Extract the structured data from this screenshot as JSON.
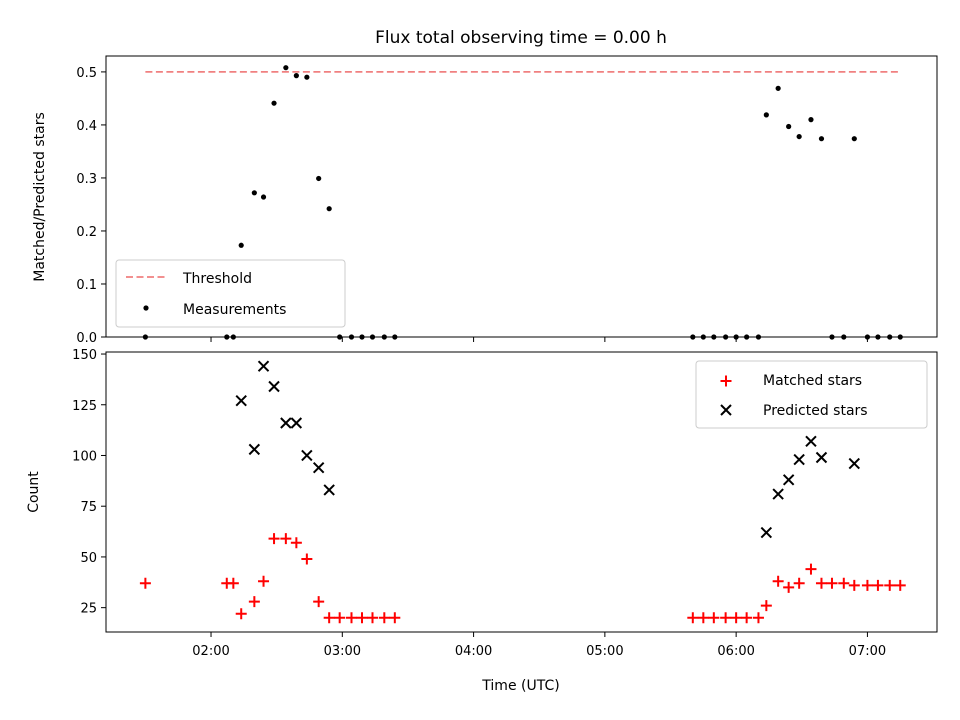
{
  "chart_data": [
    {
      "type": "scatter",
      "title": "Flux total observing time = 0.00 h",
      "xlabel": "",
      "ylabel": "Matched/Predicted stars",
      "xlim": [
        1.2,
        7.53
      ],
      "ylim": [
        0.0,
        0.53
      ],
      "yticks": [
        0.0,
        0.1,
        0.2,
        0.3,
        0.4,
        0.5
      ],
      "ytick_labels": [
        "0.0",
        "0.1",
        "0.2",
        "0.3",
        "0.4",
        "0.5"
      ],
      "legend_position": "lower-left",
      "threshold": {
        "name": "Threshold",
        "y": 0.5,
        "x_range": [
          1.5,
          7.25
        ],
        "color": "#f08080"
      },
      "series": [
        {
          "name": "Measurements",
          "color": "#000000",
          "marker": "dot",
          "points": [
            [
              1.5,
              0.0
            ],
            [
              2.12,
              0.0
            ],
            [
              2.17,
              0.0
            ],
            [
              2.23,
              0.173
            ],
            [
              2.33,
              0.272
            ],
            [
              2.4,
              0.264
            ],
            [
              2.48,
              0.441
            ],
            [
              2.57,
              0.508
            ],
            [
              2.65,
              0.493
            ],
            [
              2.73,
              0.49
            ],
            [
              2.82,
              0.299
            ],
            [
              2.9,
              0.242
            ],
            [
              2.98,
              0.0
            ],
            [
              3.07,
              0.0
            ],
            [
              3.15,
              0.0
            ],
            [
              3.23,
              0.0
            ],
            [
              3.32,
              0.0
            ],
            [
              3.4,
              0.0
            ],
            [
              5.67,
              0.0
            ],
            [
              5.75,
              0.0
            ],
            [
              5.83,
              0.0
            ],
            [
              5.92,
              0.0
            ],
            [
              6.0,
              0.0
            ],
            [
              6.08,
              0.0
            ],
            [
              6.17,
              0.0
            ],
            [
              6.23,
              0.419
            ],
            [
              6.32,
              0.469
            ],
            [
              6.4,
              0.397
            ],
            [
              6.48,
              0.378
            ],
            [
              6.57,
              0.41
            ],
            [
              6.65,
              0.374
            ],
            [
              6.73,
              0.0
            ],
            [
              6.82,
              0.0
            ],
            [
              6.9,
              0.374
            ],
            [
              7.0,
              0.0
            ],
            [
              7.08,
              0.0
            ],
            [
              7.17,
              0.0
            ],
            [
              7.25,
              0.0
            ]
          ]
        }
      ]
    },
    {
      "type": "scatter",
      "title": "",
      "xlabel": "Time (UTC)",
      "ylabel": "Count",
      "xlim": [
        1.2,
        7.53
      ],
      "ylim": [
        13,
        151
      ],
      "yticks": [
        25,
        50,
        75,
        100,
        125,
        150
      ],
      "ytick_labels": [
        "25",
        "50",
        "75",
        "100",
        "125",
        "150"
      ],
      "xticks": [
        2,
        3,
        4,
        5,
        6,
        7
      ],
      "xtick_labels": [
        "02:00",
        "03:00",
        "04:00",
        "05:00",
        "06:00",
        "07:00"
      ],
      "legend_position": "upper-right",
      "series": [
        {
          "name": "Matched stars",
          "color": "#ff0000",
          "marker": "plus",
          "points": [
            [
              1.5,
              37
            ],
            [
              2.12,
              37
            ],
            [
              2.17,
              37
            ],
            [
              2.23,
              22
            ],
            [
              2.33,
              28
            ],
            [
              2.4,
              38
            ],
            [
              2.48,
              59
            ],
            [
              2.57,
              59
            ],
            [
              2.65,
              57
            ],
            [
              2.73,
              49
            ],
            [
              2.82,
              28
            ],
            [
              2.9,
              20
            ],
            [
              2.98,
              20
            ],
            [
              3.07,
              20
            ],
            [
              3.15,
              20
            ],
            [
              3.23,
              20
            ],
            [
              3.32,
              20
            ],
            [
              3.4,
              20
            ],
            [
              5.67,
              20
            ],
            [
              5.75,
              20
            ],
            [
              5.83,
              20
            ],
            [
              5.92,
              20
            ],
            [
              6.0,
              20
            ],
            [
              6.08,
              20
            ],
            [
              6.17,
              20
            ],
            [
              6.23,
              26
            ],
            [
              6.32,
              38
            ],
            [
              6.4,
              35
            ],
            [
              6.48,
              37
            ],
            [
              6.57,
              44
            ],
            [
              6.65,
              37
            ],
            [
              6.73,
              37
            ],
            [
              6.82,
              37
            ],
            [
              6.9,
              36
            ],
            [
              7.0,
              36
            ],
            [
              7.08,
              36
            ],
            [
              7.17,
              36
            ],
            [
              7.25,
              36
            ]
          ]
        },
        {
          "name": "Predicted stars",
          "color": "#000000",
          "marker": "x",
          "points": [
            [
              2.23,
              127
            ],
            [
              2.33,
              103
            ],
            [
              2.4,
              144
            ],
            [
              2.48,
              134
            ],
            [
              2.57,
              116
            ],
            [
              2.65,
              116
            ],
            [
              2.73,
              100
            ],
            [
              2.82,
              94
            ],
            [
              2.9,
              83
            ],
            [
              6.23,
              62
            ],
            [
              6.32,
              81
            ],
            [
              6.4,
              88
            ],
            [
              6.48,
              98
            ],
            [
              6.57,
              107
            ],
            [
              6.65,
              99
            ],
            [
              6.9,
              96
            ]
          ]
        }
      ]
    }
  ]
}
